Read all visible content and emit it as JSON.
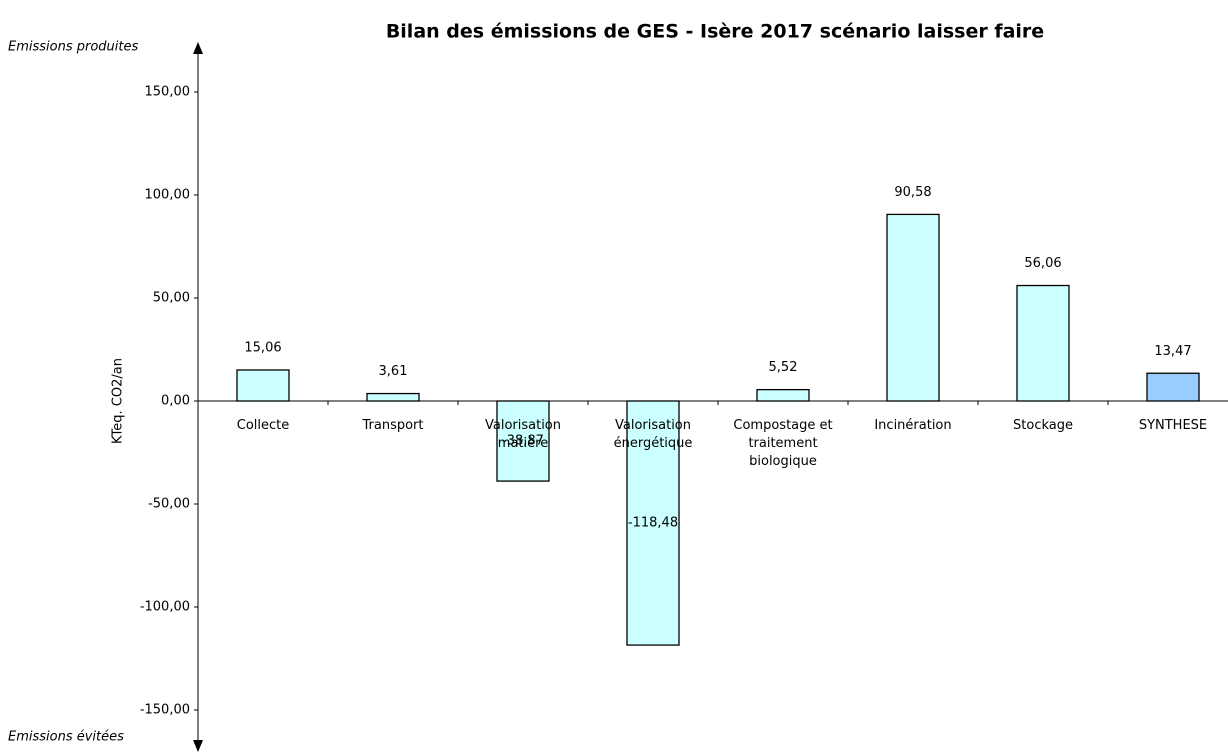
{
  "chart_data": {
    "type": "bar",
    "title": "Bilan des émissions de GES - Isère 2017 scénario laisser faire",
    "y_label": "KTeq. CO2/an",
    "annotations": [
      "Emissions produites",
      "Emissions évitées"
    ],
    "categories": [
      "Collecte",
      "Transport",
      "Valorisation matière",
      "Valorisation énergétique",
      "Compostage et traitement biologique",
      "Incinération",
      "Stockage",
      "SYNTHESE"
    ],
    "values": [
      15.06,
      3.61,
      -38.87,
      -118.48,
      5.52,
      90.58,
      56.06,
      13.47
    ],
    "value_labels": [
      "15,06",
      "3,61",
      "-38,87",
      "-118,48",
      "5,52",
      "90,58",
      "56,06",
      "13,47"
    ],
    "colors": [
      "#ccffff",
      "#ccffff",
      "#ccffff",
      "#ccffff",
      "#ccffff",
      "#ccffff",
      "#ccffff",
      "#99ccff"
    ],
    "ylim": [
      -150,
      150
    ],
    "yticks": [
      {
        "value": -150,
        "label": "-150,00"
      },
      {
        "value": -100,
        "label": "-100,00"
      },
      {
        "value": -50,
        "label": "-50,00"
      },
      {
        "value": 0,
        "label": "0,00"
      },
      {
        "value": 50,
        "label": "50,00"
      },
      {
        "value": 100,
        "label": "100,00"
      },
      {
        "value": 150,
        "label": "150,00"
      }
    ]
  }
}
